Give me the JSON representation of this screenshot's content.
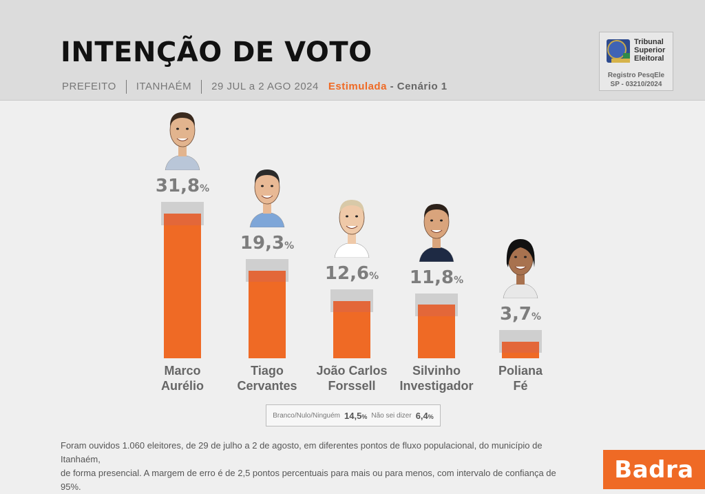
{
  "header": {
    "title": "INTENÇÃO DE VOTO",
    "office": "PREFEITO",
    "city": "ITANHAÉM",
    "dates": "29 JUL a 2 AGO 2024",
    "type": "Estimulada",
    "scenario": "- Cenário 1"
  },
  "registry": {
    "org_line1": "Tribunal",
    "org_line2": "Superior",
    "org_line3": "Eleitoral",
    "reg_line1": "Registro PesqEle",
    "reg_line2": "SP - 03210/2024"
  },
  "colors": {
    "bar": "#ef6a25",
    "margin_band": "#cfcfcf",
    "header_bg": "#dcdcdc",
    "brand": "#ef6a25"
  },
  "chart_data": {
    "type": "bar",
    "categories": [
      "Marco Aurélio",
      "Tiago Cervantes",
      "João Carlos Forssell",
      "Silvinho Investigador",
      "Poliana Fé"
    ],
    "category_lines": [
      [
        "Marco",
        "Aurélio"
      ],
      [
        "Tiago",
        "Cervantes"
      ],
      [
        "João Carlos",
        "Forssell"
      ],
      [
        "Silvinho",
        "Investigador"
      ],
      [
        "Poliana",
        "Fé"
      ]
    ],
    "values": [
      31.8,
      19.3,
      12.6,
      11.8,
      3.7
    ],
    "value_labels": [
      "31,8",
      "19,3",
      "12,6",
      "11,8",
      "3,7"
    ],
    "unit": "%",
    "margin_of_error": 2.5,
    "ylim": [
      0,
      35
    ],
    "grid": false,
    "legend": "none"
  },
  "others": {
    "blank_label": "Branco/Nulo/Ninguém",
    "blank_value": "14,5",
    "unknown_label": "Não sei dizer",
    "unknown_value": "6,4",
    "unit": "%"
  },
  "footnote": {
    "line1": "Foram ouvidos 1.060 eleitores, de 29 de julho a 2 de agosto, em diferentes pontos de fluxo populacional, do município de Itanhaém,",
    "line2": "de forma presencial. A margem de erro é de 2,5 pontos percentuais para mais ou para menos, com intervalo de confiança de 95%."
  },
  "brand": "Badra"
}
